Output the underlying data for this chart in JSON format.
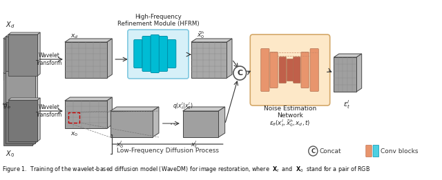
{
  "figsize": [
    6.4,
    2.61
  ],
  "dpi": 100,
  "bg_color": "#ffffff",
  "caption": "Figure 1.  Training of the wavelet-based diffusion model (WaveDM) for image restoration, where  $\\mathbf{X}_t$  and  $\\mathbf{X}_0$  stand for a pair of RGB",
  "caption_fontsize": 6.0,
  "title_hfrm": "High-Frequency\nRefinement Module (HFRM)",
  "label_lfp": "Low-Frequency Diffusion Process",
  "label_nen": "Noise Estimation\nNetwork",
  "label_concat": "Concat",
  "label_conv": "Conv blocks",
  "hfrm_bg": "#d6f0f8",
  "hfrm_bar_color": "#00bcd4",
  "hfrm_bar_dark": "#0090aa",
  "nen_bg": "#fde8c8",
  "nen_bar_color": "#e8956d",
  "nen_bar_inner": "#c0604a",
  "image_gray": "#888888",
  "image_dark": "#555555",
  "arrow_color": "#333333",
  "red_box_color": "#cc0000",
  "orange_legend": "#e8956d",
  "cyan_legend": "#4dd0e1",
  "grid_color": "#aaaaaa",
  "edge_color": "#444444"
}
